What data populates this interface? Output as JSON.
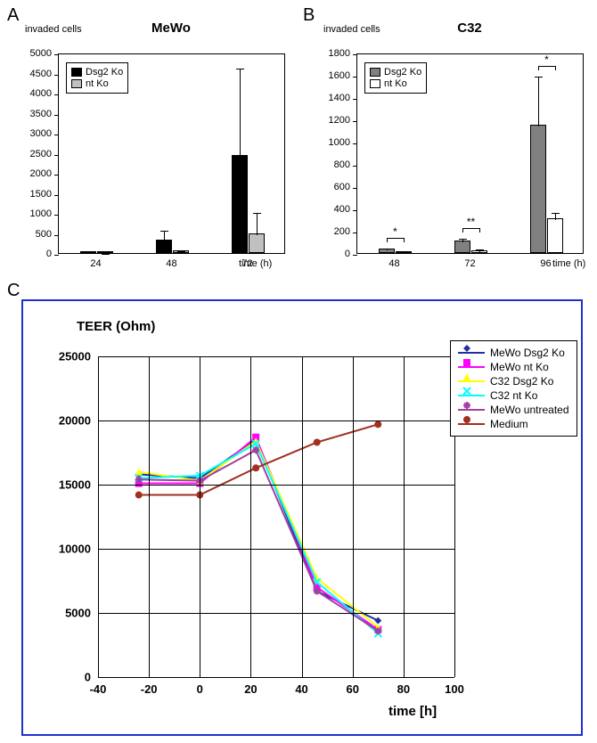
{
  "panelA": {
    "label": "A",
    "y_axis_title": "invaded cells",
    "title": "MeWo",
    "x_axis_title": "time (h)",
    "type": "bar",
    "ylim": [
      0,
      5000
    ],
    "ytick_step": 500,
    "categories": [
      "24",
      "48",
      "72"
    ],
    "series": [
      {
        "name": "Dsg2 Ko",
        "color": "#000000",
        "values": [
          30,
          340,
          2450
        ],
        "errors": [
          20,
          250,
          2200
        ]
      },
      {
        "name": "nt Ko",
        "color": "#c0c0c0",
        "values": [
          15,
          60,
          500
        ],
        "errors": [
          10,
          40,
          550
        ]
      }
    ],
    "bar_width": 0.22,
    "border_color": "#000000",
    "background_color": "#ffffff",
    "tick_labels_y": [
      "0",
      "500",
      "1000",
      "1500",
      "2000",
      "2500",
      "3000",
      "3500",
      "4000",
      "4500",
      "5000"
    ],
    "label_fontsize": 11,
    "title_fontsize": 15
  },
  "panelB": {
    "label": "B",
    "y_axis_title": "invaded cells",
    "title": "C32",
    "x_axis_title": "time (h)",
    "type": "bar",
    "ylim": [
      0,
      1800
    ],
    "ytick_step": 200,
    "categories": [
      "48",
      "72",
      "96"
    ],
    "series": [
      {
        "name": "Dsg2 Ko",
        "color": "#808080",
        "values": [
          40,
          110,
          1150
        ],
        "errors": [
          20,
          35,
          450
        ]
      },
      {
        "name": "nt Ko",
        "color": "#ffffff",
        "values": [
          10,
          25,
          310
        ],
        "errors": [
          5,
          20,
          70
        ]
      }
    ],
    "significance": [
      {
        "cat": 0,
        "label": "*"
      },
      {
        "cat": 1,
        "label": "**"
      },
      {
        "cat": 2,
        "label": "*"
      }
    ],
    "bar_width": 0.22,
    "border_color": "#000000",
    "background_color": "#ffffff",
    "tick_labels_y": [
      "0",
      "200",
      "400",
      "600",
      "800",
      "1000",
      "1200",
      "1400",
      "1600",
      "1800"
    ],
    "label_fontsize": 11,
    "title_fontsize": 15
  },
  "panelC": {
    "label": "C",
    "type": "line",
    "y_axis_title": "TEER (Ohm)",
    "x_axis_title": "time [h]",
    "xlim": [
      -40,
      100
    ],
    "ylim": [
      0,
      25000
    ],
    "xticks": [
      -40,
      -20,
      0,
      20,
      40,
      60,
      80,
      100
    ],
    "yticks": [
      0,
      5000,
      10000,
      15000,
      20000,
      25000
    ],
    "xtick_labels": [
      "-40",
      "-20",
      "0",
      "20",
      "40",
      "60",
      "80",
      "100"
    ],
    "ytick_labels": [
      "0",
      "5000",
      "10000",
      "15000",
      "20000",
      "25000"
    ],
    "grid_color": "#000000",
    "background_color": "#ffffff",
    "outer_border_color": "#2030d0",
    "series": [
      {
        "name": "MeWo Dsg2 Ko",
        "color": "#2030a0",
        "marker": "diamond",
        "x": [
          -24,
          0,
          22,
          46,
          70
        ],
        "y": [
          15800,
          15500,
          18500,
          6700,
          4400
        ]
      },
      {
        "name": "MeWo nt Ko",
        "color": "#ff00ff",
        "marker": "square",
        "x": [
          -24,
          0,
          22,
          46,
          70
        ],
        "y": [
          15100,
          15100,
          18700,
          7000,
          3700
        ]
      },
      {
        "name": "C32 Dsg2 Ko",
        "color": "#ffff00",
        "marker": "triangle",
        "x": [
          -24,
          0,
          22,
          46,
          70
        ],
        "y": [
          16000,
          15300,
          18400,
          7700,
          3900
        ]
      },
      {
        "name": "C32 nt Ko",
        "color": "#00ffff",
        "marker": "xmark",
        "x": [
          -24,
          0,
          22,
          46,
          70
        ],
        "y": [
          15500,
          15700,
          18200,
          7400,
          3400
        ]
      },
      {
        "name": "MeWo untreated",
        "color": "#a040a0",
        "marker": "asterisk",
        "x": [
          -24,
          0,
          22,
          46,
          70
        ],
        "y": [
          15400,
          15300,
          17700,
          6700,
          3600
        ]
      },
      {
        "name": "Medium",
        "color": "#a03020",
        "marker": "circle",
        "x": [
          -24,
          0,
          22,
          46,
          70
        ],
        "y": [
          14200,
          14200,
          16300,
          18300,
          19700
        ]
      }
    ],
    "line_width": 2,
    "marker_size": 8,
    "label_fontsize": 13,
    "title_fontsize": 15
  }
}
